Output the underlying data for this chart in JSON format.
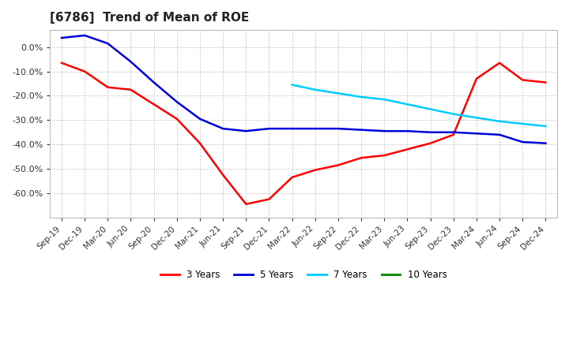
{
  "title": "[6786]  Trend of Mean of ROE",
  "title_fontsize": 11,
  "background_color": "#ffffff",
  "grid_color": "#999999",
  "xtick_labels": [
    "Sep-19",
    "Dec-19",
    "Mar-20",
    "Jun-20",
    "Sep-20",
    "Dec-20",
    "Mar-21",
    "Jun-21",
    "Sep-21",
    "Dec-21",
    "Mar-22",
    "Jun-22",
    "Sep-22",
    "Dec-22",
    "Mar-23",
    "Jun-23",
    "Sep-23",
    "Dec-23",
    "Mar-24",
    "Jun-24",
    "Sep-24",
    "Dec-24"
  ],
  "ylim": [
    -0.7,
    0.07
  ],
  "yticks": [
    0.0,
    -0.1,
    -0.2,
    -0.3,
    -0.4,
    -0.5,
    -0.6
  ],
  "series_3y": {
    "label": "3 Years",
    "color": "#ff0000",
    "x": [
      0,
      1,
      2,
      3,
      4,
      5,
      6,
      7,
      8,
      9,
      10,
      11,
      12,
      13,
      14,
      15,
      16,
      17,
      18,
      19,
      20,
      21
    ],
    "y": [
      -0.065,
      -0.1,
      -0.165,
      -0.175,
      -0.235,
      -0.295,
      -0.395,
      -0.525,
      -0.645,
      -0.625,
      -0.535,
      -0.505,
      -0.485,
      -0.455,
      -0.445,
      -0.42,
      -0.395,
      -0.36,
      -0.13,
      -0.065,
      -0.135,
      -0.145
    ]
  },
  "series_5y": {
    "label": "5 Years",
    "color": "#0000dd",
    "x": [
      0,
      1,
      2,
      3,
      4,
      5,
      6,
      7,
      8,
      9,
      10,
      11,
      12,
      13,
      14,
      15,
      16,
      17,
      18,
      19,
      20,
      21
    ],
    "y": [
      0.038,
      0.048,
      0.015,
      -0.06,
      -0.145,
      -0.225,
      -0.295,
      -0.335,
      -0.345,
      -0.335,
      -0.335,
      -0.335,
      -0.335,
      -0.34,
      -0.345,
      -0.345,
      -0.35,
      -0.35,
      -0.355,
      -0.36,
      -0.39,
      -0.395
    ]
  },
  "series_7y": {
    "label": "7 Years",
    "color": "#00ccff",
    "x": [
      10,
      11,
      12,
      13,
      14,
      15,
      16,
      17,
      18,
      19,
      20,
      21
    ],
    "y": [
      -0.155,
      -0.175,
      -0.19,
      -0.205,
      -0.215,
      -0.235,
      -0.255,
      -0.275,
      -0.29,
      -0.305,
      -0.315,
      -0.325
    ]
  },
  "series_10y": {
    "label": "10 Years",
    "color": "#008800",
    "x": [],
    "y": []
  },
  "legend_labels": [
    "3 Years",
    "5 Years",
    "7 Years",
    "10 Years"
  ],
  "legend_colors": [
    "#ff0000",
    "#0000dd",
    "#00ccff",
    "#008800"
  ]
}
